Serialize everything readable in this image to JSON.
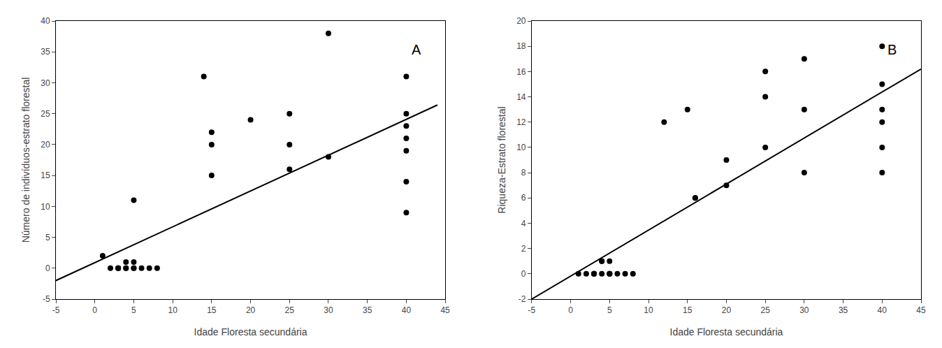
{
  "chart_data": [
    {
      "type": "scatter",
      "xlabel": "Idade Floresta secundária",
      "ylabel": "Número de indivíduos-estrato florestal",
      "series": [
        {
          "type": "scatter",
          "color": "black",
          "marker": "circle",
          "x": [
            1,
            2,
            3,
            3,
            3,
            4,
            4,
            4,
            5,
            5,
            5,
            5,
            6,
            7,
            8,
            14,
            15,
            15,
            15,
            20,
            25,
            25,
            25,
            30,
            30,
            40,
            40,
            40,
            40,
            40,
            40,
            40
          ],
          "values": [
            2,
            0,
            0,
            0,
            0,
            0,
            0,
            1,
            1,
            0,
            0,
            11,
            0,
            0,
            0,
            31,
            15,
            20,
            22,
            24,
            16,
            20,
            25,
            38,
            18,
            9,
            14,
            19,
            21,
            23,
            25,
            31
          ]
        },
        {
          "type": "line",
          "color": "black",
          "line_style": "solid",
          "x": [
            -5,
            44
          ],
          "values": [
            -2.0,
            26.4
          ]
        }
      ],
      "xlim": [
        -5,
        45
      ],
      "ylim": [
        -5,
        40
      ],
      "xticks": [
        -5,
        0,
        5,
        10,
        15,
        20,
        25,
        30,
        35,
        40,
        45
      ],
      "yticks": [
        -5,
        0,
        5,
        10,
        15,
        20,
        25,
        30,
        35,
        40
      ],
      "annotations": [
        "A"
      ],
      "grid": false
    },
    {
      "type": "scatter",
      "xlabel": "Idade Floresta secundária",
      "ylabel": "Riqueza-Estrato florestal",
      "series": [
        {
          "type": "scatter",
          "color": "black",
          "marker": "circle",
          "x": [
            1,
            2,
            3,
            3,
            3,
            4,
            4,
            4,
            5,
            5,
            5,
            5,
            6,
            7,
            8,
            12,
            15,
            16,
            16,
            20,
            20,
            25,
            25,
            25,
            30,
            30,
            30,
            40,
            40,
            40,
            40,
            40,
            40
          ],
          "values": [
            0,
            0,
            0,
            0,
            0,
            0,
            1,
            1,
            1,
            0,
            0,
            0,
            0,
            0,
            0,
            12,
            13,
            6,
            6,
            7,
            9,
            10,
            14,
            16,
            17,
            8,
            13,
            8,
            10,
            12,
            13,
            15,
            18
          ]
        },
        {
          "type": "line",
          "color": "black",
          "line_style": "solid",
          "x": [
            -5,
            45
          ],
          "values": [
            -2.0,
            16.2
          ]
        }
      ],
      "xlim": [
        -5,
        45
      ],
      "ylim": [
        -2,
        20
      ],
      "xticks": [
        -5,
        0,
        5,
        10,
        15,
        20,
        25,
        30,
        35,
        40,
        45
      ],
      "yticks": [
        -2,
        0,
        2,
        4,
        6,
        8,
        10,
        12,
        14,
        16,
        18,
        20
      ],
      "annotations": [
        "B"
      ],
      "grid": false
    }
  ]
}
